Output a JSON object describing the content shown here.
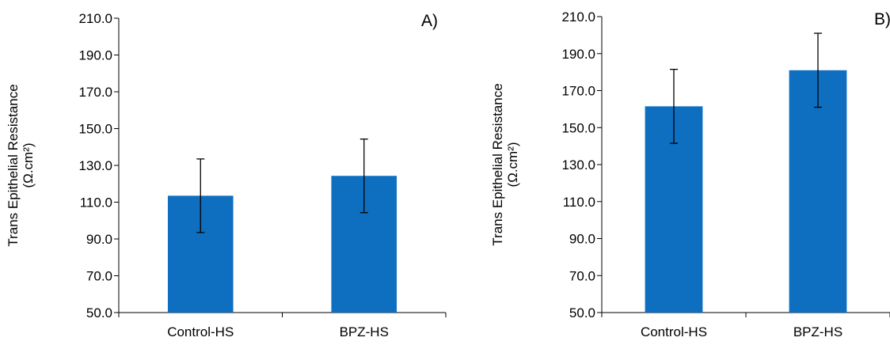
{
  "chart_data": [
    {
      "type": "bar",
      "panel_label": "A)",
      "categories": [
        "Control-HS",
        "BPZ-HS"
      ],
      "values": [
        113.5,
        124.3
      ],
      "errors": [
        20.0,
        20.0
      ],
      "ylabel": "Trans Epithelial Resistance",
      "ylabel_unit": "(Ω.cm²)",
      "ylim": [
        50,
        210
      ],
      "yticks": [
        "50.0",
        "70.0",
        "90.0",
        "110.0",
        "130.0",
        "150.0",
        "170.0",
        "190.0",
        "210.0"
      ],
      "bar_color": "#0E6EC0",
      "grid": false
    },
    {
      "type": "bar",
      "panel_label": "B)",
      "categories": [
        "Control-HS",
        "BPZ-HS"
      ],
      "values": [
        161.5,
        181.0
      ],
      "errors": [
        20.0,
        20.0
      ],
      "ylabel": "Trans Epithelial Resistance",
      "ylabel_unit": "(Ω.cm²)",
      "ylim": [
        50,
        210
      ],
      "yticks": [
        "50.0",
        "70.0",
        "90.0",
        "110.0",
        "130.0",
        "150.0",
        "170.0",
        "190.0",
        "210.0"
      ],
      "bar_color": "#0E6EC0",
      "grid": false
    }
  ]
}
